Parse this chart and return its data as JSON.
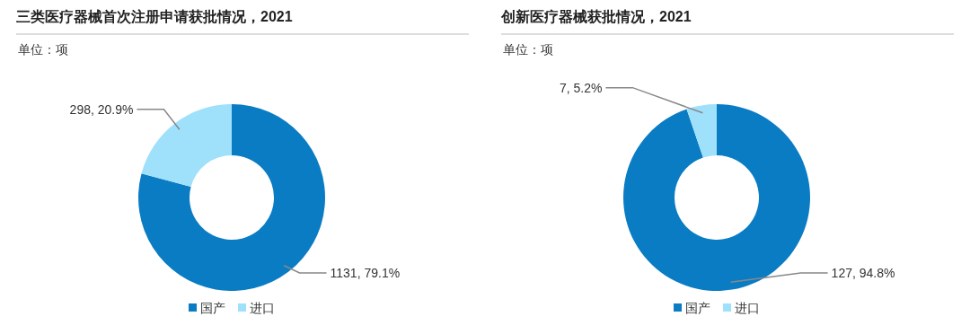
{
  "chart_data": [
    {
      "type": "donut",
      "title": "三类医疗器械首次注册申请获批情况，2021",
      "subtitle": "单位：项",
      "categories": [
        "国产",
        "进口"
      ],
      "values": [
        1131,
        298
      ],
      "colors": [
        "#0a7cc4",
        "#9fe0fb"
      ],
      "value_labels": [
        "1131, 79.1%",
        "298, 20.9%"
      ],
      "legend": "bottom"
    },
    {
      "type": "donut",
      "title": "创新医疗器械获批情况，2021",
      "subtitle": "单位：项",
      "categories": [
        "国产",
        "进口"
      ],
      "values": [
        127,
        7
      ],
      "colors": [
        "#0a7cc4",
        "#9fe0fb"
      ],
      "value_labels": [
        "127, 94.8%",
        "7, 5.2%"
      ],
      "legend": "bottom"
    }
  ]
}
